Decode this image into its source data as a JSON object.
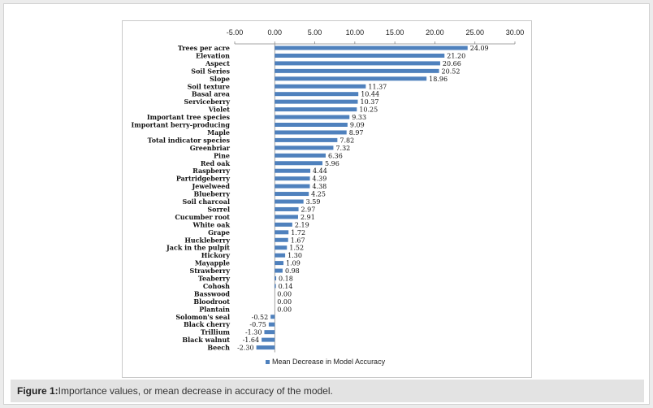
{
  "caption": {
    "label": "Figure 1:",
    "text": "Importance values, or mean decrease in accuracy of the model."
  },
  "chart_data": {
    "type": "bar",
    "orientation": "horizontal",
    "title": "",
    "xlabel": "",
    "ylabel": "",
    "xlim": [
      -5,
      30
    ],
    "x_ticks": [
      -5,
      0,
      5,
      10,
      15,
      20,
      25,
      30
    ],
    "x_tick_labels": [
      "-5.00",
      "0.00",
      "5.00",
      "10.00",
      "15.00",
      "20.00",
      "25.00",
      "30.00"
    ],
    "x_axis_position": "top",
    "grid": false,
    "bar_color": "#4f81bd",
    "legend": {
      "label": "Mean Decrease in Model Accuracy",
      "position": "bottom"
    },
    "categories": [
      "Trees per acre",
      "Elevation",
      "Aspect",
      "Soil Series",
      "Slope",
      "Soil texture",
      "Basal area",
      "Serviceberry",
      "Violet",
      "Important tree species",
      "Important berry-producing",
      "Maple",
      "Total indicator species",
      "Greenbriar",
      "Pine",
      "Red oak",
      "Raspberry",
      "Partridgeberry",
      "Jewelweed",
      "Blueberry",
      "Soil charcoal",
      "Sorrel",
      "Cucumber root",
      "White oak",
      "Grape",
      "Huckleberry",
      "Jack in the pulpit",
      "Hickory",
      "Mayapple",
      "Strawberry",
      "Teaberry",
      "Cohosh",
      "Basswood",
      "Bloodroot",
      "Plantain",
      "Solomon's seal",
      "Black cherry",
      "Trillium",
      "Black walnut",
      "Beech"
    ],
    "values": [
      24.09,
      21.2,
      20.66,
      20.52,
      18.96,
      11.37,
      10.44,
      10.37,
      10.25,
      9.33,
      9.09,
      8.97,
      7.82,
      7.32,
      6.36,
      5.96,
      4.44,
      4.39,
      4.38,
      4.25,
      3.59,
      2.97,
      2.91,
      2.19,
      1.72,
      1.67,
      1.52,
      1.3,
      1.09,
      0.98,
      0.18,
      0.14,
      0.0,
      0.0,
      0.0,
      -0.52,
      -0.75,
      -1.3,
      -1.64,
      -2.3
    ],
    "value_labels": [
      "24.09",
      "21.20",
      "20.66",
      "20.52",
      "18.96",
      "11.37",
      "10.44",
      "10.37",
      "10.25",
      "9.33",
      "9.09",
      "8.97",
      "7.82",
      "7.32",
      "6.36",
      "5.96",
      "4.44",
      "4.39",
      "4.38",
      "4.25",
      "3.59",
      "2.97",
      "2.91",
      "2.19",
      "1.72",
      "1.67",
      "1.52",
      "1.30",
      "1.09",
      "0.98",
      "0.18",
      "0.14",
      "0.00",
      "0.00",
      "0.00",
      "-0.52",
      "-0.75",
      "-1.30",
      "-1.64",
      "-2.30"
    ]
  }
}
